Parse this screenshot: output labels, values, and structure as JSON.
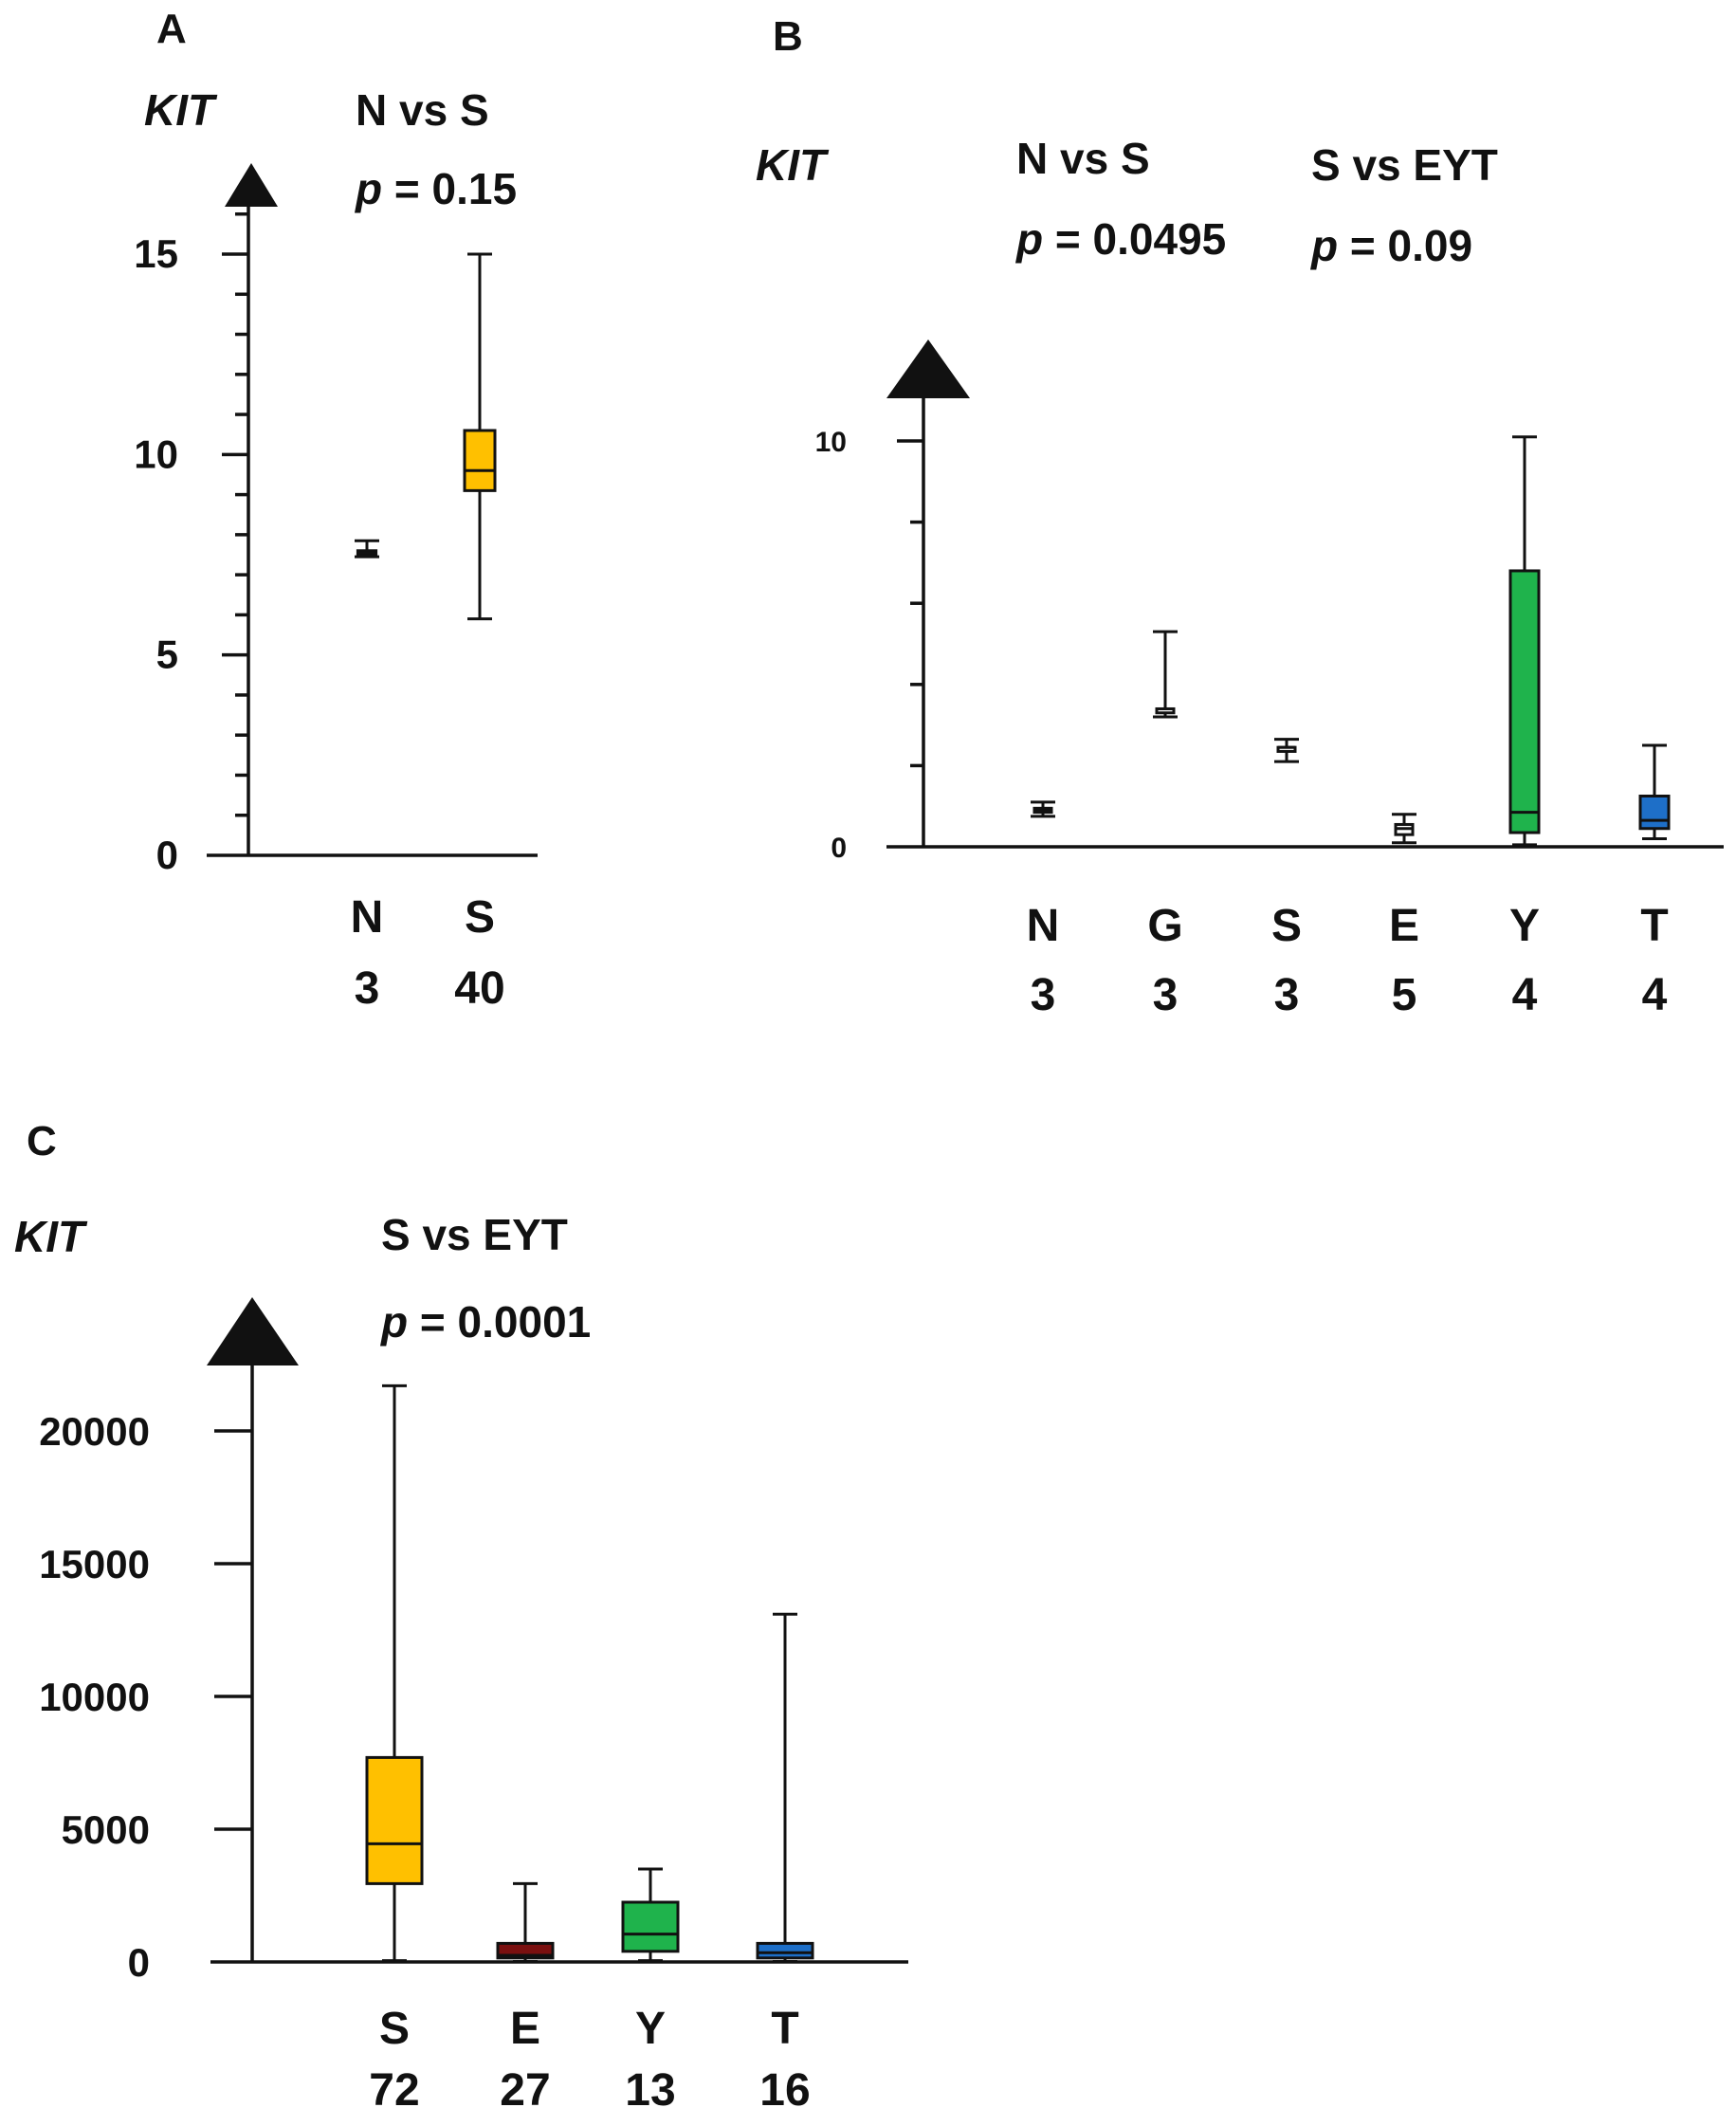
{
  "colors": {
    "S": "#FFC000",
    "Y": "#1FB34C",
    "T": "#1E6FC8",
    "E": "#7A1010",
    "none": "#ffffff"
  },
  "chart_data": [
    {
      "panel": "A",
      "type": "box",
      "ylabel": "KIT",
      "ylim": [
        0,
        16
      ],
      "y_tick_labels": [
        "0",
        "5",
        "10",
        "15"
      ],
      "y_tick_values": [
        0,
        5,
        10,
        15
      ],
      "y_minor_step": 1,
      "comparisons": [
        {
          "label": "N vs S",
          "p_symbol": "p",
          "p_text": " = 0.15"
        }
      ],
      "categories": [
        {
          "name": "N",
          "n": "3",
          "color_key": "none",
          "min": 7.45,
          "q1": 7.5,
          "median": 7.55,
          "q3": 7.6,
          "max": 7.85
        },
        {
          "name": "S",
          "n": "40",
          "color_key": "S",
          "min": 5.9,
          "q1": 9.1,
          "median": 9.6,
          "q3": 10.6,
          "max": 15.0
        }
      ]
    },
    {
      "panel": "B",
      "type": "box",
      "ylabel": "KIT",
      "ylim": [
        0,
        11
      ],
      "y_tick_labels": [
        "0",
        "10"
      ],
      "y_tick_values": [
        0,
        10
      ],
      "y_minor_step": 2,
      "comparisons": [
        {
          "label": "N vs S",
          "p_symbol": "p",
          "p_text": " = 0.0495"
        },
        {
          "label": "S vs EYT",
          "p_symbol": "p",
          "p_text": " = 0.09"
        }
      ],
      "categories": [
        {
          "name": "N",
          "n": "3",
          "color_key": "none",
          "min": 0.75,
          "q1": 0.85,
          "median": 0.9,
          "q3": 0.95,
          "max": 1.1
        },
        {
          "name": "G",
          "n": "3",
          "color_key": "none",
          "min": 3.2,
          "q1": 3.3,
          "median": 3.4,
          "q3": 3.4,
          "max": 5.3
        },
        {
          "name": "S",
          "n": "3",
          "color_key": "none",
          "min": 2.1,
          "q1": 2.35,
          "median": 2.45,
          "q3": 2.45,
          "max": 2.65
        },
        {
          "name": "E",
          "n": "5",
          "color_key": "none",
          "min": 0.1,
          "q1": 0.3,
          "median": 0.45,
          "q3": 0.55,
          "max": 0.8
        },
        {
          "name": "Y",
          "n": "4",
          "color_key": "Y",
          "min": 0.05,
          "q1": 0.35,
          "median": 0.85,
          "q3": 6.8,
          "max": 10.1
        },
        {
          "name": "T",
          "n": "4",
          "color_key": "T",
          "min": 0.2,
          "q1": 0.45,
          "median": 0.65,
          "q3": 1.25,
          "max": 2.5
        }
      ]
    },
    {
      "panel": "C",
      "type": "box",
      "ylabel": "KIT",
      "ylim": [
        0,
        22000
      ],
      "y_tick_labels": [
        "0",
        "5000",
        "10000",
        "15000",
        "20000"
      ],
      "y_tick_values": [
        0,
        5000,
        10000,
        15000,
        20000
      ],
      "y_minor_step": 0,
      "comparisons": [
        {
          "label": "S vs EYT",
          "p_symbol": "p",
          "p_text": " = 0.0001"
        }
      ],
      "categories": [
        {
          "name": "S",
          "n": "72",
          "color_key": "S",
          "min": 50,
          "q1": 2950,
          "median": 4450,
          "q3": 7700,
          "max": 21700
        },
        {
          "name": "E",
          "n": "27",
          "color_key": "E",
          "min": 20,
          "q1": 150,
          "median": 250,
          "q3": 700,
          "max": 2950
        },
        {
          "name": "Y",
          "n": "13",
          "color_key": "Y",
          "min": 50,
          "q1": 400,
          "median": 1050,
          "q3": 2250,
          "max": 3500
        },
        {
          "name": "T",
          "n": "16",
          "color_key": "T",
          "min": 20,
          "q1": 150,
          "median": 350,
          "q3": 700,
          "max": 13100
        }
      ]
    }
  ]
}
